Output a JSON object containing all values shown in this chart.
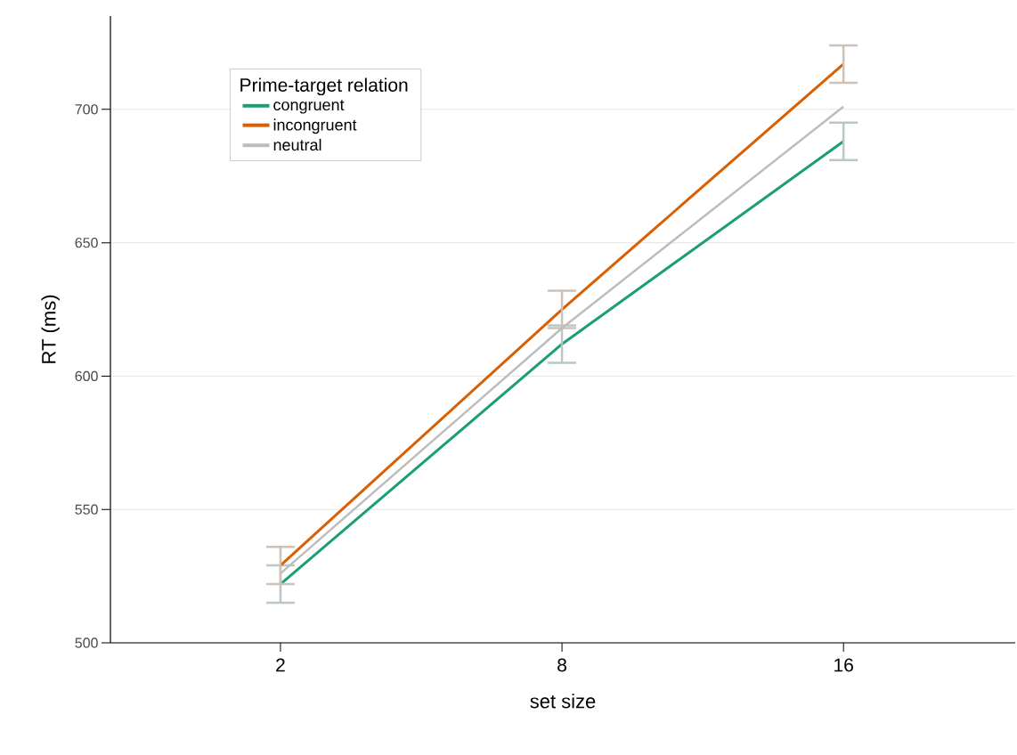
{
  "chart_data": {
    "type": "line",
    "xlabel": "set size",
    "ylabel": "RT (ms)",
    "legend_title": "Prime-target relation",
    "categories": [
      "2",
      "8",
      "16"
    ],
    "series": [
      {
        "name": "congruent",
        "color": "#1b9e77",
        "values": [
          522,
          612,
          688
        ],
        "errors": [
          7,
          7,
          7
        ]
      },
      {
        "name": "incongruent",
        "color": "#d95f02",
        "values": [
          529,
          625,
          717
        ],
        "errors": [
          7,
          7,
          7
        ]
      },
      {
        "name": "neutral",
        "color": "#bdbdbd",
        "values": [
          526,
          618,
          701
        ]
      }
    ],
    "ylim": [
      500,
      735
    ],
    "yticks": [
      500,
      550,
      600,
      650,
      700
    ],
    "grid": "y",
    "legend": "top left",
    "marker": "none",
    "line_style": "solid"
  }
}
